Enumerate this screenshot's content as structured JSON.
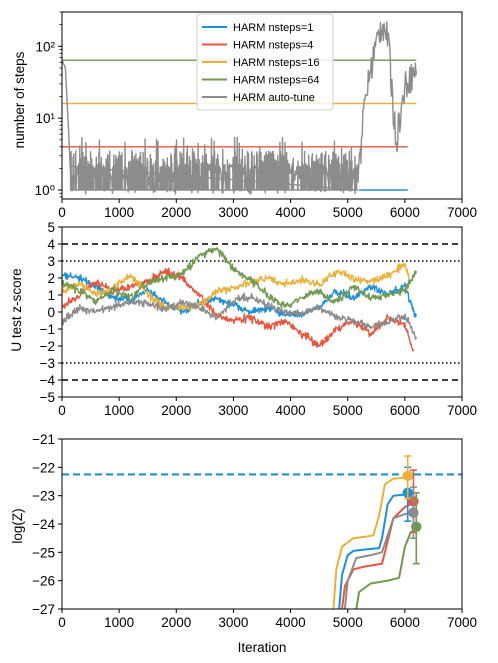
{
  "chart_data": [
    {
      "type": "line",
      "title": "",
      "xlabel": "",
      "ylabel": "number of steps",
      "yscale": "log",
      "xlim": [
        0,
        7000
      ],
      "ylim": [
        0.75,
        300
      ],
      "xticks": [
        0,
        1000,
        2000,
        3000,
        4000,
        5000,
        6000,
        7000
      ],
      "yticks": [
        1,
        10,
        100
      ],
      "ytick_labels": [
        "10⁰",
        "10¹",
        "10²"
      ],
      "grid": false,
      "legend": "top-center",
      "series": [
        {
          "name": "HARM nsteps=1",
          "color": "#1f8fd6",
          "x": [
            5200,
            6050
          ],
          "y": [
            1,
            1
          ]
        },
        {
          "name": "HARM nsteps=4",
          "color": "#e8553e",
          "x": [
            0,
            6050
          ],
          "y": [
            4,
            4
          ]
        },
        {
          "name": "HARM nsteps=16",
          "color": "#e9b13b",
          "x": [
            0,
            6200
          ],
          "y": [
            16,
            16
          ]
        },
        {
          "name": "HARM nsteps=64",
          "color": "#6f9a4f",
          "x": [
            0,
            6200
          ],
          "y": [
            64,
            64
          ]
        },
        {
          "name": "HARM auto-tune",
          "color": "#8c8c8c",
          "x": [
            0,
            60,
            110,
            150,
            5180,
            5230,
            5300,
            5400,
            5500,
            5600,
            5700,
            5750,
            5800,
            5850,
            5900,
            5950,
            6000,
            6100,
            6200
          ],
          "y": [
            64,
            50,
            8,
            1.6,
            1.6,
            4,
            15,
            45,
            110,
            210,
            140,
            40,
            12,
            5,
            10,
            14,
            30,
            40,
            45
          ]
        }
      ]
    },
    {
      "type": "line",
      "title": "",
      "xlabel": "",
      "ylabel": "U test z-score",
      "xlim": [
        0,
        7000
      ],
      "ylim": [
        -5,
        5
      ],
      "xticks": [
        0,
        1000,
        2000,
        3000,
        4000,
        5000,
        6000,
        7000
      ],
      "yticks": [
        -5,
        -4,
        -3,
        -2,
        -1,
        0,
        1,
        2,
        3,
        4,
        5
      ],
      "reference_lines": [
        {
          "y": 4,
          "style": "dashed"
        },
        {
          "y": -4,
          "style": "dashed"
        },
        {
          "y": 3,
          "style": "dotted"
        },
        {
          "y": -3,
          "style": "dotted"
        }
      ],
      "grid": false,
      "series": [
        {
          "name": "HARM nsteps=1",
          "color": "#1f8fd6",
          "x": [
            0,
            300,
            600,
            900,
            1200,
            1500,
            1800,
            2100,
            2400,
            2700,
            3000,
            3300,
            3600,
            3900,
            4200,
            4500,
            4800,
            5100,
            5400,
            5700,
            6000,
            6200
          ],
          "y": [
            2.2,
            2.0,
            1.5,
            0.8,
            0.7,
            1.3,
            0.6,
            0.0,
            0.5,
            0.8,
            0.4,
            0.0,
            0.2,
            -0.1,
            -0.2,
            0.3,
            1.2,
            0.8,
            1.5,
            1.0,
            1.5,
            -0.3
          ]
        },
        {
          "name": "HARM nsteps=4",
          "color": "#e8553e",
          "x": [
            0,
            300,
            600,
            900,
            1200,
            1500,
            1800,
            2100,
            2400,
            2700,
            3000,
            3300,
            3600,
            3900,
            4200,
            4500,
            4800,
            5100,
            5400,
            5700,
            6000,
            6150
          ],
          "y": [
            0.3,
            1.0,
            1.8,
            1.2,
            1.5,
            1.8,
            2.4,
            2.0,
            1.0,
            -0.2,
            -0.5,
            -0.3,
            -0.9,
            -0.5,
            -1.3,
            -2.0,
            -1.0,
            -0.5,
            -1.3,
            -0.3,
            -0.8,
            -2.3
          ]
        },
        {
          "name": "HARM nsteps=16",
          "color": "#e9b13b",
          "x": [
            0,
            300,
            600,
            900,
            1200,
            1500,
            1800,
            2100,
            2400,
            2700,
            3000,
            3300,
            3600,
            3900,
            4200,
            4500,
            4800,
            5100,
            5400,
            5700,
            6000,
            6100
          ],
          "y": [
            1.2,
            1.7,
            1.0,
            1.4,
            2.2,
            1.0,
            0.4,
            0.2,
            0.4,
            1.2,
            1.4,
            1.7,
            2.0,
            1.6,
            1.9,
            1.6,
            2.4,
            2.0,
            1.8,
            2.1,
            2.8,
            1.7
          ]
        },
        {
          "name": "HARM nsteps=64",
          "color": "#6f9a4f",
          "x": [
            0,
            300,
            600,
            900,
            1200,
            1500,
            1800,
            2100,
            2400,
            2700,
            3000,
            3300,
            3600,
            3900,
            4200,
            4500,
            4800,
            5100,
            5400,
            5700,
            6000,
            6200
          ],
          "y": [
            1.7,
            1.3,
            0.6,
            1.3,
            0.8,
            1.7,
            2.0,
            2.2,
            3.3,
            3.8,
            2.5,
            1.9,
            1.0,
            0.3,
            0.9,
            1.2,
            0.6,
            1.5,
            0.8,
            1.0,
            1.3,
            2.4
          ]
        },
        {
          "name": "HARM auto-tune",
          "color": "#8c8c8c",
          "x": [
            0,
            300,
            600,
            900,
            1200,
            1500,
            1800,
            2100,
            2400,
            2700,
            3000,
            3300,
            3600,
            3900,
            4200,
            4500,
            4800,
            5100,
            5400,
            5700,
            6000,
            6200
          ],
          "y": [
            -0.5,
            0.2,
            0.0,
            0.3,
            0.6,
            0.5,
            0.2,
            0.5,
            0.3,
            -0.4,
            0.7,
            0.9,
            0.4,
            0.0,
            -0.1,
            0.3,
            -0.3,
            -0.5,
            -0.9,
            -0.6,
            -0.2,
            -1.5
          ]
        }
      ]
    },
    {
      "type": "line",
      "title": "",
      "xlabel": "Iteration",
      "ylabel": "log(Z)",
      "xlim": [
        0,
        7000
      ],
      "ylim": [
        -27,
        -21
      ],
      "xticks": [
        0,
        1000,
        2000,
        3000,
        4000,
        5000,
        6000,
        7000
      ],
      "yticks": [
        -27,
        -26,
        -25,
        -24,
        -23,
        -22,
        -21
      ],
      "reference_lines": [
        {
          "y": -22.25,
          "style": "dashed",
          "color": "#1f8fd6"
        }
      ],
      "grid": false,
      "series": [
        {
          "name": "HARM nsteps=1",
          "color": "#1f8fd6",
          "x": [
            4850,
            4900,
            5000,
            5100,
            5300,
            5550,
            5600,
            5700,
            5800,
            6050
          ],
          "y": [
            -27,
            -25.8,
            -25.1,
            -24.95,
            -24.9,
            -24.85,
            -24.5,
            -23.3,
            -23.0,
            -22.95
          ],
          "endpoint": {
            "x": 6050,
            "y": -22.9,
            "err_low": -23.9,
            "err_high": -22.0
          }
        },
        {
          "name": "HARM nsteps=4",
          "color": "#e8553e",
          "x": [
            4900,
            4950,
            5100,
            5300,
            5600,
            5700,
            5800,
            6000,
            6150
          ],
          "y": [
            -27,
            -26.2,
            -25.6,
            -25.5,
            -25.4,
            -24.6,
            -23.8,
            -23.4,
            -23.25
          ],
          "endpoint": {
            "x": 6150,
            "y": -23.2,
            "err_low": -24.3,
            "err_high": -22.1
          }
        },
        {
          "name": "HARM nsteps=16",
          "color": "#e9b13b",
          "x": [
            4750,
            4800,
            4900,
            5100,
            5300,
            5450,
            5550,
            5650,
            5800,
            6050
          ],
          "y": [
            -27,
            -25.6,
            -24.8,
            -24.5,
            -24.45,
            -24.4,
            -23.7,
            -22.6,
            -22.4,
            -22.35
          ],
          "endpoint": {
            "x": 6050,
            "y": -22.3,
            "err_low": -23.1,
            "err_high": -21.6
          }
        },
        {
          "name": "HARM nsteps=64",
          "color": "#6f9a4f",
          "x": [
            5150,
            5200,
            5400,
            5700,
            5900,
            6000,
            6100,
            6200
          ],
          "y": [
            -27,
            -26.4,
            -26.1,
            -26.0,
            -25.9,
            -24.8,
            -24.3,
            -24.15
          ],
          "endpoint": {
            "x": 6200,
            "y": -24.1,
            "err_low": -25.4,
            "err_high": -22.9
          }
        },
        {
          "name": "HARM auto-tune",
          "color": "#8c8c8c",
          "x": [
            4950,
            5000,
            5150,
            5400,
            5600,
            5700,
            5800,
            6000,
            6150
          ],
          "y": [
            -27,
            -26.0,
            -25.2,
            -25.1,
            -25.0,
            -24.4,
            -23.8,
            -23.65,
            -23.6
          ],
          "endpoint": {
            "x": 6150,
            "y": -23.6,
            "err_low": -24.5,
            "err_high": -22.7
          }
        }
      ]
    }
  ]
}
